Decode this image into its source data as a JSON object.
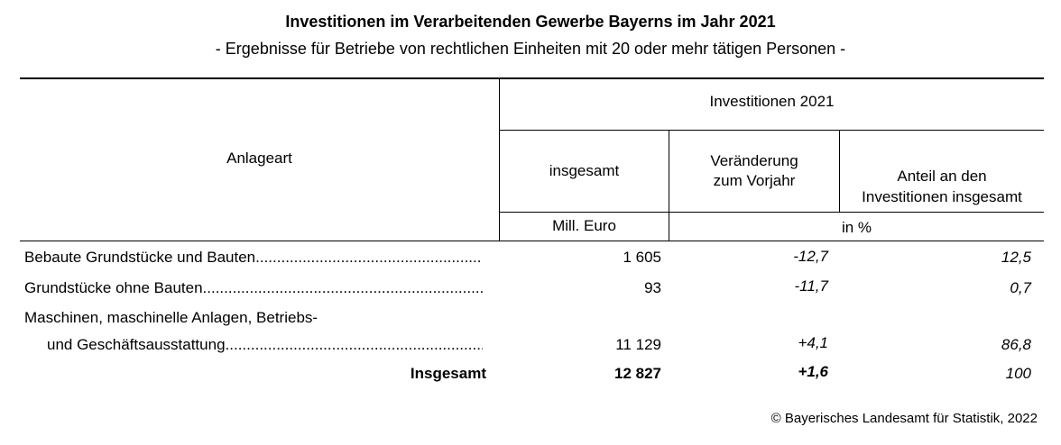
{
  "title": "Investitionen im Verarbeitenden Gewerbe Bayerns im Jahr 2021",
  "subtitle": "- Ergebnisse für Betriebe von rechtlichen Einheiten mit 20 oder mehr tätigen Personen -",
  "header": {
    "anlageart": "Anlageart",
    "group": "Investitionen 2021",
    "col_insgesamt": "insgesamt",
    "col_veraenderung_1": "Veränderung",
    "col_veraenderung_2": "zum Vorjahr",
    "col_anteil_1": "Anteil an den",
    "col_anteil_2": "Investitionen insgesamt",
    "unit_mill": "Mill. Euro",
    "unit_pct": "in %"
  },
  "rows": [
    {
      "label": "Bebaute Grundstücke und Bauten",
      "insgesamt": "1 605",
      "veraenderung": "-12,7",
      "anteil": "12,5"
    },
    {
      "label": "Grundstücke ohne Bauten",
      "insgesamt": "93",
      "veraenderung": "-11,7",
      "anteil": "0,7"
    },
    {
      "label_line1": "Maschinen, maschinelle Anlagen, Betriebs-",
      "label_line2": "und Geschäftsausstattung",
      "insgesamt": "11 129",
      "veraenderung": "+4,1",
      "anteil": "86,8"
    }
  ],
  "total": {
    "label": "Insgesamt",
    "insgesamt": "12 827",
    "veraenderung": "+1,6",
    "anteil": "100"
  },
  "footer": "© Bayerisches Landesamt für Statistik, 2022"
}
